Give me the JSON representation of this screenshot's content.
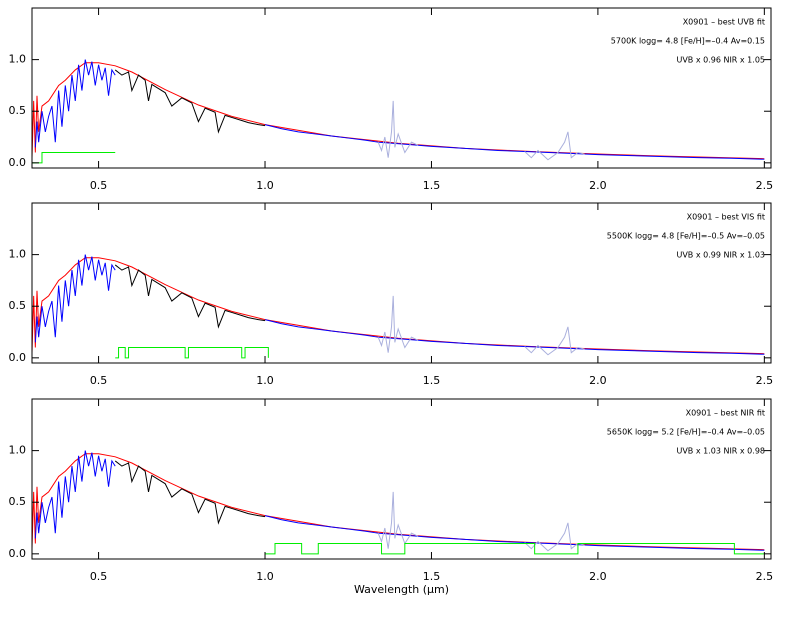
{
  "chart_data": [
    {
      "type": "line",
      "annotations": [
        "X0901 – best UVB fit",
        "5700K logg= 4.8 [Fe/H]=–0.4 Av=0.15",
        "UVB x 0.96  NIR x 1.05"
      ],
      "xlim": [
        0.3,
        2.52
      ],
      "ylim": [
        -0.05,
        1.5
      ],
      "xticks": [
        0.5,
        {
          "value": 1,
          "label": "1.0"
        },
        1.5,
        {
          "value": 2,
          "label": "2.0"
        },
        2.5
      ],
      "yticks": [
        {
          "value": 0,
          "label": "0.0"
        },
        0.5,
        {
          "value": 1,
          "label": "1.0"
        }
      ],
      "series": [
        {
          "color": "#ff0000",
          "x": [
            0.3,
            0.305,
            0.31,
            0.315,
            0.32,
            0.33,
            0.35,
            0.38,
            0.4,
            0.43,
            0.46,
            0.5,
            0.55,
            0.6,
            0.7,
            0.8,
            0.9,
            1.0,
            1.2,
            1.4,
            1.6,
            1.8,
            2.0,
            2.2,
            2.5
          ],
          "values": [
            0.05,
            0.6,
            0.1,
            0.65,
            0.3,
            0.55,
            0.6,
            0.75,
            0.8,
            0.9,
            0.97,
            0.97,
            0.94,
            0.88,
            0.71,
            0.56,
            0.45,
            0.37,
            0.26,
            0.19,
            0.14,
            0.11,
            0.085,
            0.065,
            0.04
          ]
        },
        {
          "color": "#0000ff",
          "x": [
            0.31,
            0.315,
            0.32,
            0.33,
            0.34,
            0.35,
            0.36,
            0.37,
            0.38,
            0.39,
            0.4,
            0.41,
            0.42,
            0.43,
            0.44,
            0.45,
            0.46,
            0.47,
            0.48,
            0.49,
            0.5,
            0.51,
            0.52,
            0.53,
            0.54,
            0.55
          ],
          "values": [
            0.15,
            0.4,
            0.2,
            0.5,
            0.3,
            0.45,
            0.55,
            0.2,
            0.7,
            0.35,
            0.75,
            0.5,
            0.85,
            0.6,
            0.95,
            0.7,
            1.0,
            0.85,
            0.98,
            0.75,
            0.95,
            0.8,
            0.92,
            0.65,
            0.9,
            0.85
          ]
        },
        {
          "color": "#000000",
          "x": [
            0.55,
            0.57,
            0.59,
            0.6,
            0.62,
            0.64,
            0.65,
            0.66,
            0.68,
            0.7,
            0.72,
            0.75,
            0.78,
            0.8,
            0.82,
            0.85,
            0.86,
            0.88,
            0.9,
            0.93,
            0.95,
            0.98,
            1.0
          ],
          "values": [
            0.9,
            0.85,
            0.88,
            0.7,
            0.85,
            0.8,
            0.6,
            0.76,
            0.72,
            0.68,
            0.55,
            0.63,
            0.58,
            0.4,
            0.53,
            0.49,
            0.3,
            0.46,
            0.44,
            0.41,
            0.39,
            0.37,
            0.36
          ]
        },
        {
          "color": "#0000ff",
          "x": [
            1.0,
            1.05,
            1.1,
            1.15,
            1.2,
            1.25,
            1.3,
            1.34,
            1.46,
            1.5,
            1.55,
            1.6,
            1.7,
            1.78,
            1.96,
            2.0,
            2.1,
            2.2,
            2.3,
            2.4,
            2.5
          ],
          "values": [
            0.37,
            0.33,
            0.3,
            0.28,
            0.26,
            0.24,
            0.22,
            0.2,
            0.17,
            0.16,
            0.15,
            0.14,
            0.12,
            0.11,
            0.085,
            0.08,
            0.07,
            0.06,
            0.05,
            0.045,
            0.035
          ]
        },
        {
          "color": "#aab0dd",
          "x": [
            1.34,
            1.35,
            1.36,
            1.37,
            1.38,
            1.385,
            1.39,
            1.4,
            1.42,
            1.44,
            1.46
          ],
          "values": [
            0.2,
            0.12,
            0.25,
            0.05,
            0.3,
            0.6,
            0.15,
            0.28,
            0.1,
            0.2,
            0.17
          ]
        },
        {
          "color": "#aab0dd",
          "x": [
            1.78,
            1.8,
            1.82,
            1.85,
            1.88,
            1.9,
            1.91,
            1.92,
            1.94,
            1.96
          ],
          "values": [
            0.11,
            0.05,
            0.12,
            0.03,
            0.1,
            0.2,
            0.3,
            0.05,
            0.1,
            0.085
          ]
        },
        {
          "color": "#00ee00",
          "x": [
            0.3,
            0.33,
            0.33,
            0.55
          ],
          "values": [
            0,
            0,
            0.1,
            0.1
          ]
        }
      ]
    },
    {
      "type": "line",
      "annotations": [
        "X0901 – best VIS fit",
        "5500K logg= 4.8 [Fe/H]=–0.5 Av=–0.05",
        "UVB x 0.99  NIR x 1.03"
      ],
      "xlim": [
        0.3,
        2.52
      ],
      "ylim": [
        -0.05,
        1.5
      ],
      "xticks": [
        0.5,
        {
          "value": 1,
          "label": "1.0"
        },
        1.5,
        {
          "value": 2,
          "label": "2.0"
        },
        2.5
      ],
      "yticks": [
        {
          "value": 0,
          "label": "0.0"
        },
        0.5,
        {
          "value": 1,
          "label": "1.0"
        }
      ],
      "series": [
        {
          "color": "#ff0000",
          "x": [
            0.3,
            0.305,
            0.31,
            0.315,
            0.32,
            0.33,
            0.35,
            0.38,
            0.4,
            0.43,
            0.46,
            0.5,
            0.55,
            0.6,
            0.7,
            0.8,
            0.9,
            1.0,
            1.2,
            1.4,
            1.6,
            1.8,
            2.0,
            2.2,
            2.5
          ],
          "values": [
            0.05,
            0.6,
            0.1,
            0.65,
            0.3,
            0.55,
            0.6,
            0.75,
            0.8,
            0.9,
            0.97,
            0.97,
            0.94,
            0.88,
            0.71,
            0.56,
            0.45,
            0.37,
            0.26,
            0.19,
            0.14,
            0.11,
            0.085,
            0.065,
            0.04
          ]
        },
        {
          "color": "#0000ff",
          "x": [
            0.31,
            0.315,
            0.32,
            0.33,
            0.34,
            0.35,
            0.36,
            0.37,
            0.38,
            0.39,
            0.4,
            0.41,
            0.42,
            0.43,
            0.44,
            0.45,
            0.46,
            0.47,
            0.48,
            0.49,
            0.5,
            0.51,
            0.52,
            0.53,
            0.54,
            0.55
          ],
          "values": [
            0.15,
            0.4,
            0.2,
            0.5,
            0.3,
            0.45,
            0.55,
            0.2,
            0.7,
            0.35,
            0.75,
            0.5,
            0.85,
            0.6,
            0.95,
            0.7,
            1.0,
            0.85,
            0.98,
            0.75,
            0.95,
            0.8,
            0.92,
            0.65,
            0.9,
            0.85
          ]
        },
        {
          "color": "#000000",
          "x": [
            0.55,
            0.57,
            0.59,
            0.6,
            0.62,
            0.64,
            0.65,
            0.66,
            0.68,
            0.7,
            0.72,
            0.75,
            0.78,
            0.8,
            0.82,
            0.85,
            0.86,
            0.88,
            0.9,
            0.93,
            0.95,
            0.98,
            1.0
          ],
          "values": [
            0.9,
            0.85,
            0.88,
            0.7,
            0.85,
            0.8,
            0.6,
            0.76,
            0.72,
            0.68,
            0.55,
            0.63,
            0.58,
            0.4,
            0.53,
            0.49,
            0.3,
            0.46,
            0.44,
            0.41,
            0.39,
            0.37,
            0.36
          ]
        },
        {
          "color": "#0000ff",
          "x": [
            1.0,
            1.05,
            1.1,
            1.15,
            1.2,
            1.25,
            1.3,
            1.34,
            1.46,
            1.5,
            1.55,
            1.6,
            1.7,
            1.78,
            1.96,
            2.0,
            2.1,
            2.2,
            2.3,
            2.4,
            2.5
          ],
          "values": [
            0.37,
            0.33,
            0.3,
            0.28,
            0.26,
            0.24,
            0.22,
            0.2,
            0.17,
            0.16,
            0.15,
            0.14,
            0.12,
            0.11,
            0.085,
            0.08,
            0.07,
            0.06,
            0.05,
            0.045,
            0.035
          ]
        },
        {
          "color": "#aab0dd",
          "x": [
            1.34,
            1.35,
            1.36,
            1.37,
            1.38,
            1.385,
            1.39,
            1.4,
            1.42,
            1.44,
            1.46
          ],
          "values": [
            0.2,
            0.12,
            0.25,
            0.05,
            0.3,
            0.6,
            0.15,
            0.28,
            0.1,
            0.2,
            0.17
          ]
        },
        {
          "color": "#aab0dd",
          "x": [
            1.78,
            1.8,
            1.82,
            1.85,
            1.88,
            1.9,
            1.91,
            1.92,
            1.94,
            1.96
          ],
          "values": [
            0.11,
            0.05,
            0.12,
            0.03,
            0.1,
            0.2,
            0.3,
            0.05,
            0.1,
            0.085
          ]
        },
        {
          "color": "#00ee00",
          "x": [
            0.55,
            0.56,
            0.56,
            0.58,
            0.58,
            0.59,
            0.59,
            0.76,
            0.76,
            0.77,
            0.77,
            0.93,
            0.93,
            0.94,
            0.94,
            1.01,
            1.01
          ],
          "values": [
            0,
            0,
            0.1,
            0.1,
            0,
            0,
            0.1,
            0.1,
            0,
            0,
            0.1,
            0.1,
            0,
            0,
            0.1,
            0.1,
            0
          ]
        }
      ]
    },
    {
      "type": "line",
      "annotations": [
        "X0901 – best NIR fit",
        "5650K logg= 5.2 [Fe/H]=–0.4 Av=–0.05",
        "UVB x 1.03  NIR x 0.98"
      ],
      "x_label": "Wavelength (μm)",
      "xlim": [
        0.3,
        2.52
      ],
      "ylim": [
        -0.05,
        1.5
      ],
      "xticks": [
        0.5,
        {
          "value": 1,
          "label": "1.0"
        },
        1.5,
        {
          "value": 2,
          "label": "2.0"
        },
        2.5
      ],
      "yticks": [
        {
          "value": 0,
          "label": "0.0"
        },
        0.5,
        {
          "value": 1,
          "label": "1.0"
        }
      ],
      "series": [
        {
          "color": "#ff0000",
          "x": [
            0.3,
            0.305,
            0.31,
            0.315,
            0.32,
            0.33,
            0.35,
            0.38,
            0.4,
            0.43,
            0.46,
            0.5,
            0.55,
            0.6,
            0.7,
            0.8,
            0.9,
            1.0,
            1.2,
            1.4,
            1.6,
            1.8,
            2.0,
            2.2,
            2.5
          ],
          "values": [
            0.05,
            0.6,
            0.1,
            0.65,
            0.3,
            0.55,
            0.6,
            0.75,
            0.8,
            0.9,
            0.97,
            0.97,
            0.94,
            0.88,
            0.71,
            0.56,
            0.45,
            0.37,
            0.26,
            0.19,
            0.14,
            0.11,
            0.085,
            0.065,
            0.04
          ]
        },
        {
          "color": "#0000ff",
          "x": [
            0.31,
            0.315,
            0.32,
            0.33,
            0.34,
            0.35,
            0.36,
            0.37,
            0.38,
            0.39,
            0.4,
            0.41,
            0.42,
            0.43,
            0.44,
            0.45,
            0.46,
            0.47,
            0.48,
            0.49,
            0.5,
            0.51,
            0.52,
            0.53,
            0.54,
            0.55
          ],
          "values": [
            0.15,
            0.4,
            0.2,
            0.5,
            0.3,
            0.45,
            0.55,
            0.2,
            0.7,
            0.35,
            0.75,
            0.5,
            0.85,
            0.6,
            0.95,
            0.7,
            1.0,
            0.85,
            0.98,
            0.75,
            0.95,
            0.8,
            0.92,
            0.65,
            0.9,
            0.85
          ]
        },
        {
          "color": "#000000",
          "x": [
            0.55,
            0.57,
            0.59,
            0.6,
            0.62,
            0.64,
            0.65,
            0.66,
            0.68,
            0.7,
            0.72,
            0.75,
            0.78,
            0.8,
            0.82,
            0.85,
            0.86,
            0.88,
            0.9,
            0.93,
            0.95,
            0.98,
            1.0
          ],
          "values": [
            0.9,
            0.85,
            0.88,
            0.7,
            0.85,
            0.8,
            0.6,
            0.76,
            0.72,
            0.68,
            0.55,
            0.63,
            0.58,
            0.4,
            0.53,
            0.49,
            0.3,
            0.46,
            0.44,
            0.41,
            0.39,
            0.37,
            0.36
          ]
        },
        {
          "color": "#0000ff",
          "x": [
            1.0,
            1.05,
            1.1,
            1.15,
            1.2,
            1.25,
            1.3,
            1.34,
            1.46,
            1.5,
            1.55,
            1.6,
            1.7,
            1.78,
            1.96,
            2.0,
            2.1,
            2.2,
            2.3,
            2.4,
            2.5
          ],
          "values": [
            0.37,
            0.33,
            0.3,
            0.28,
            0.26,
            0.24,
            0.22,
            0.2,
            0.17,
            0.16,
            0.15,
            0.14,
            0.12,
            0.11,
            0.085,
            0.08,
            0.07,
            0.06,
            0.05,
            0.045,
            0.035
          ]
        },
        {
          "color": "#aab0dd",
          "x": [
            1.34,
            1.35,
            1.36,
            1.37,
            1.38,
            1.385,
            1.39,
            1.4,
            1.42,
            1.44,
            1.46
          ],
          "values": [
            0.2,
            0.12,
            0.25,
            0.05,
            0.3,
            0.6,
            0.15,
            0.28,
            0.1,
            0.2,
            0.17
          ]
        },
        {
          "color": "#aab0dd",
          "x": [
            1.78,
            1.8,
            1.82,
            1.85,
            1.88,
            1.9,
            1.91,
            1.92,
            1.94,
            1.96
          ],
          "values": [
            0.11,
            0.05,
            0.12,
            0.03,
            0.1,
            0.2,
            0.3,
            0.05,
            0.1,
            0.085
          ]
        },
        {
          "color": "#00ee00",
          "x": [
            1.0,
            1.03,
            1.03,
            1.11,
            1.11,
            1.16,
            1.16,
            1.35,
            1.35,
            1.42,
            1.42,
            1.81,
            1.81,
            1.94,
            1.94,
            2.41,
            2.41,
            2.5
          ],
          "values": [
            0,
            0,
            0.1,
            0.1,
            0,
            0,
            0.1,
            0.1,
            0,
            0,
            0.1,
            0.1,
            0,
            0,
            0.1,
            0.1,
            0,
            0
          ]
        }
      ]
    }
  ]
}
